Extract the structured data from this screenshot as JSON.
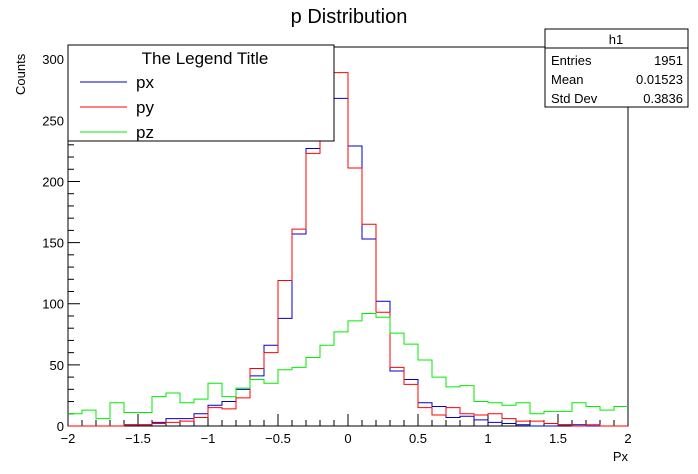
{
  "chart_data": {
    "type": "line",
    "title": "p Distribution",
    "xlabel": "Px",
    "ylabel": "Counts",
    "xlim": [
      -2,
      2
    ],
    "ylim": [
      0,
      310
    ],
    "x_ticks": [
      -2,
      -1.5,
      -1,
      -0.5,
      0,
      0.5,
      1,
      1.5,
      2
    ],
    "x_tick_labels": [
      "−2",
      "−1.5",
      "−1",
      "−0.5",
      "0",
      "0.5",
      "1",
      "1.5",
      "2"
    ],
    "y_ticks": [
      0,
      50,
      100,
      150,
      200,
      250,
      300
    ],
    "y_tick_labels": [
      "0",
      "50",
      "100",
      "150",
      "200",
      "250",
      "300"
    ],
    "bins": 40,
    "bin_width": 0.1,
    "legend": {
      "title": "The Legend Title",
      "position": "top-left"
    },
    "stats": {
      "name": "h1",
      "rows": [
        {
          "label": "Entries",
          "value": "1951"
        },
        {
          "label": "Mean",
          "value": "0.01523"
        },
        {
          "label": "Std Dev",
          "value": "0.3836"
        }
      ]
    },
    "series": [
      {
        "name": "px",
        "color": "#0000cc",
        "values": [
          0,
          0,
          0,
          0,
          1,
          1,
          3,
          6,
          6,
          10,
          17,
          20,
          30,
          41,
          66,
          88,
          157,
          227,
          294,
          268,
          229,
          153,
          102,
          45,
          38,
          19,
          16,
          7,
          8,
          5,
          3,
          2,
          1,
          0,
          0,
          1,
          1,
          0,
          0,
          0
        ]
      },
      {
        "name": "py",
        "color": "#ff0000",
        "values": [
          0,
          0,
          0,
          0,
          1,
          1,
          2,
          3,
          4,
          7,
          15,
          14,
          23,
          47,
          60,
          119,
          161,
          223,
          293,
          289,
          211,
          165,
          93,
          48,
          34,
          15,
          9,
          15,
          10,
          9,
          10,
          6,
          4,
          4,
          2,
          1,
          0,
          1,
          0,
          0
        ]
      },
      {
        "name": "pz",
        "color": "#00ee00",
        "values": [
          10,
          13,
          6,
          19,
          11,
          11,
          24,
          27,
          19,
          22,
          35,
          24,
          31,
          38,
          35,
          46,
          48,
          56,
          66,
          77,
          86,
          92,
          89,
          76,
          67,
          54,
          40,
          32,
          33,
          20,
          19,
          17,
          19,
          10,
          12,
          12,
          19,
          16,
          13,
          16
        ]
      }
    ]
  }
}
